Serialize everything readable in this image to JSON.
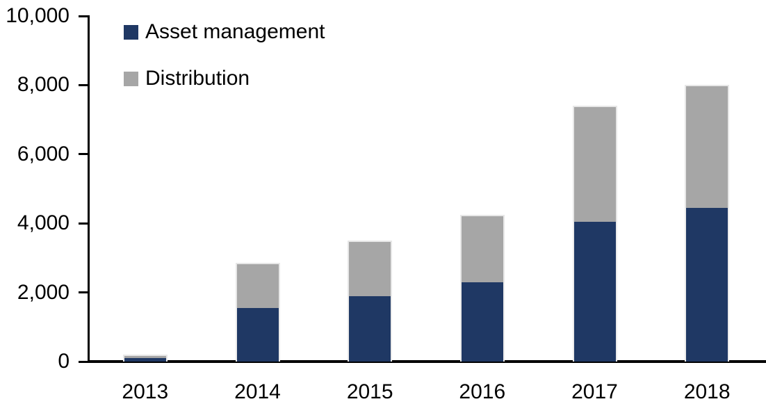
{
  "chart_data": {
    "type": "bar",
    "stacked": true,
    "categories": [
      "2013",
      "2014",
      "2015",
      "2016",
      "2017",
      "2018"
    ],
    "series": [
      {
        "name": "Asset management",
        "color": "#1F3864",
        "values": [
          100,
          1550,
          1900,
          2300,
          4050,
          4450
        ]
      },
      {
        "name": "Distribution",
        "color": "#A6A6A6",
        "values": [
          100,
          1300,
          1600,
          1950,
          3350,
          3550
        ]
      }
    ],
    "totals": [
      200,
      2850,
      3500,
      4250,
      7400,
      8000
    ],
    "title": "",
    "xlabel": "",
    "ylabel": "",
    "ylim": [
      0,
      10000
    ],
    "ytick_step": 2000,
    "yticks": [
      0,
      2000,
      4000,
      6000,
      8000,
      10000
    ],
    "ytick_labels": [
      "0",
      "2,000",
      "4,000",
      "6,000",
      "8,000",
      "10,000"
    ],
    "grid": false,
    "legend_position": "top-left"
  },
  "legend": {
    "items": [
      {
        "label": "Asset management",
        "color": "#1F3864"
      },
      {
        "label": "Distribution",
        "color": "#A6A6A6"
      }
    ]
  },
  "colors": {
    "axis": "#000000",
    "background": "#FFFFFF",
    "asset_management": "#1F3864",
    "distribution": "#A6A6A6",
    "bar_border": "#EBEBEB"
  }
}
